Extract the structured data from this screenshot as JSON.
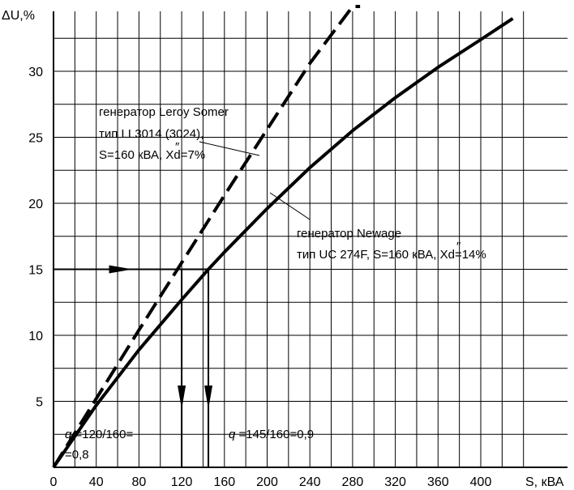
{
  "chart_data": {
    "type": "line",
    "title": "",
    "xlabel": "S, кВА",
    "ylabel": "ΔU,%",
    "xlim": [
      0,
      440
    ],
    "ylim": [
      0,
      35
    ],
    "x_ticks": [
      "0",
      "40",
      "80",
      "120",
      "160",
      "200",
      "240",
      "280",
      "320",
      "360",
      "400"
    ],
    "y_ticks": [
      "5",
      "10",
      "15",
      "20",
      "25",
      "30"
    ],
    "grid": true,
    "series": [
      {
        "name": "генератор Leroy Somer",
        "style": "dashed",
        "x": [
          0,
          40,
          80,
          120,
          160,
          200,
          240,
          280,
          287
        ],
        "y": [
          0,
          5.2,
          10.4,
          15.5,
          20.6,
          25.6,
          30.6,
          35.4,
          36.2
        ]
      },
      {
        "name": "генератор Newage",
        "style": "solid",
        "x": [
          0,
          40,
          80,
          120,
          145,
          160,
          200,
          240,
          280,
          320,
          360,
          400,
          430
        ],
        "y": [
          0,
          4.7,
          8.9,
          12.7,
          15.0,
          16.3,
          19.6,
          22.7,
          25.5,
          28.0,
          30.3,
          32.4,
          34.0
        ]
      }
    ],
    "annotations": {
      "leroy": [
        "генератор Leroy Somer",
        "тип LL3014 (3024),",
        "S=160 кВА, X",
        "d=7%"
      ],
      "newage": [
        "генератор Newage",
        "тип UC 274F, S=160 кВА, X",
        "d=14%"
      ],
      "q1": [
        "q",
        " =120/160=",
        "=0,8"
      ],
      "q2": [
        "q",
        " =145/160=0,9"
      ],
      "double_prime": "″"
    },
    "markers": {
      "level_y": 15,
      "drop_x": [
        120,
        145
      ]
    }
  }
}
